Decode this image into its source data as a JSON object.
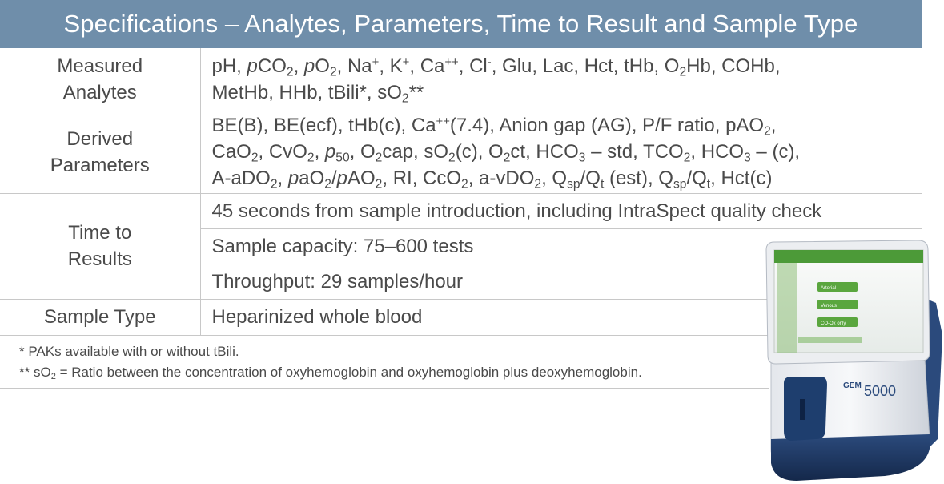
{
  "header": {
    "title": "Specifications – Analytes, Parameters, Time to Result and Sample Type"
  },
  "rows": {
    "measured": {
      "label_line1": "Measured",
      "label_line2": "Analytes",
      "line1": [
        "pH, ",
        "p",
        "CO",
        "2",
        ", ",
        "p",
        "O",
        "2",
        ", Na",
        "+",
        ", K",
        "+",
        ", Ca",
        "++",
        ", Cl",
        "-",
        ", Glu, Lac, Hct, tHb, O",
        "2",
        "Hb, COHb,"
      ],
      "line2": [
        "MetHb, HHb, tBili*, sO",
        "2",
        "**"
      ]
    },
    "derived": {
      "label_line1": "Derived",
      "label_line2": "Parameters",
      "line1": [
        "BE(B), BE(ecf), tHb(c), Ca",
        "++",
        "(7.4), Anion gap (AG), P/F ratio, pAO",
        "2",
        ","
      ],
      "line2": [
        "CaO",
        "2",
        ", CvO",
        "2",
        ", ",
        "p",
        "50",
        ", O",
        "2",
        "cap, sO",
        "2",
        "(c), O",
        "2",
        "ct, HCO",
        "3",
        " – std, TCO",
        "2",
        ", HCO",
        "3",
        " – (c),"
      ],
      "line3": [
        "A-aDO",
        "2",
        ", ",
        "p",
        "aO",
        "2",
        "/",
        "p",
        "AO",
        "2",
        ", RI, CcO",
        "2",
        ", a-vDO",
        "2",
        ", Q",
        "sp",
        "/Q",
        "t",
        " (est), Q",
        "sp",
        "/Q",
        "t",
        ", Hct(c)"
      ]
    },
    "time": {
      "label_line1": "Time to",
      "label_line2": "Results",
      "value1": "45 seconds from sample introduction, including IntraSpect quality check",
      "value2": "Sample capacity: 75–600 tests",
      "value3": "Throughput: 29 samples/hour"
    },
    "sample": {
      "label": "Sample Type",
      "value": "Heparinized whole blood"
    }
  },
  "footnotes": {
    "note1": "*  PAKs available with or without tBili.",
    "note2_prefix": "** sO",
    "note2_sub": "2",
    "note2_suffix": " = Ratio between the concentration of oxyhemoglobin and oxyhemoglobin plus deoxyhemoglobin."
  },
  "device": {
    "brand": "GEM",
    "model": "5000",
    "screen_buttons": [
      "Arterial",
      "Venous",
      "CO-Ox only"
    ],
    "colors": {
      "header": "#6f8eaa",
      "screen_green": "#5aa63e",
      "body": "#f2f3f5",
      "base": "#1f3b6b"
    }
  }
}
